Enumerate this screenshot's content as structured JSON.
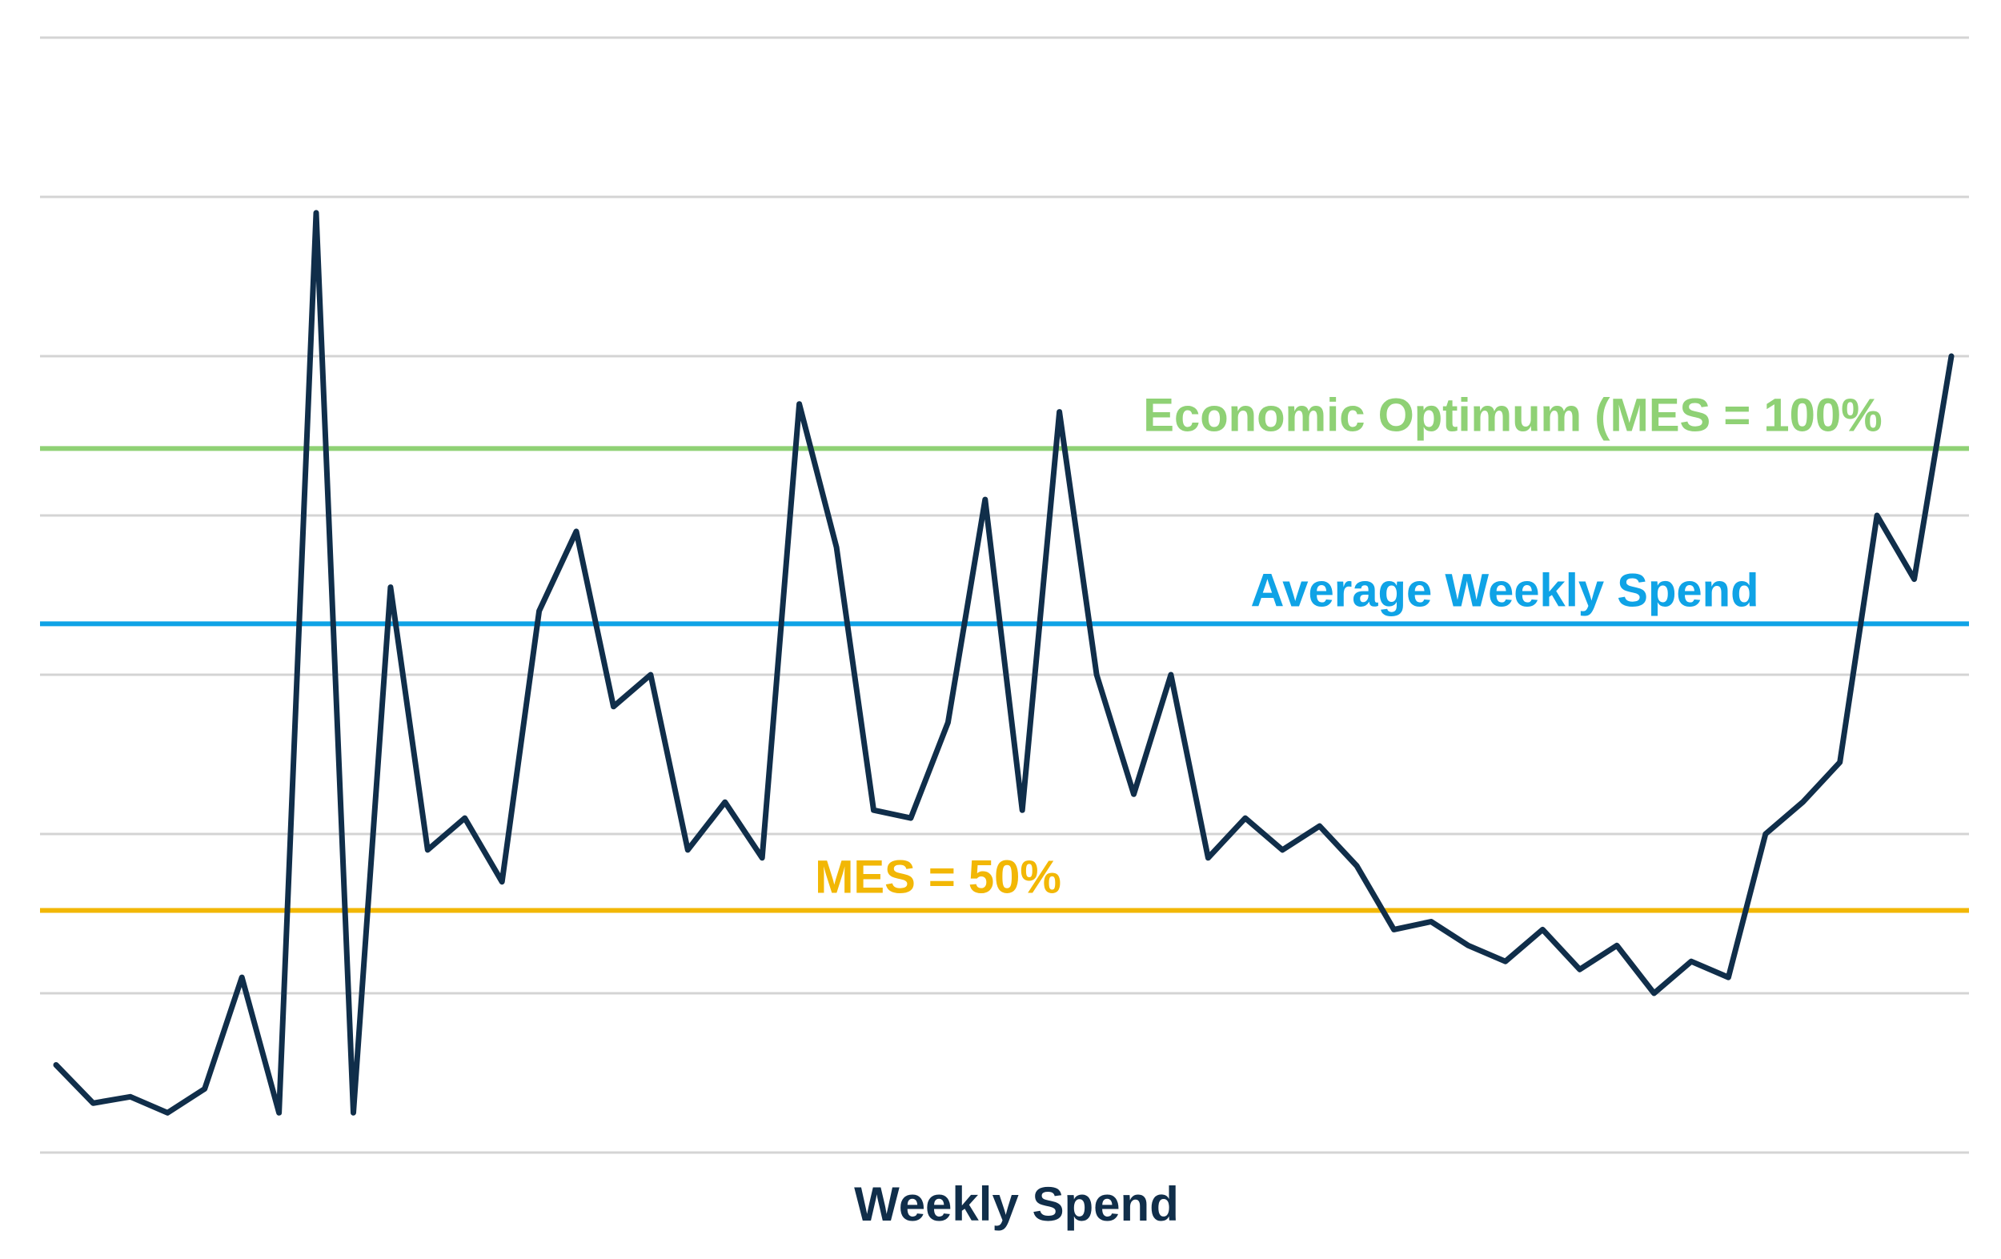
{
  "chart_data": {
    "type": "line",
    "title": "",
    "xlabel": "Weekly Spend",
    "ylabel": "",
    "ylim": [
      0,
      7
    ],
    "grid": true,
    "legend": "none",
    "colors": {
      "series": "#102e4a",
      "grid": "#d4d4d4",
      "economic_optimum": "#8fd175",
      "average": "#0fa3e6",
      "mes50": "#f2b705"
    },
    "series": [
      {
        "values": [
          0.55,
          0.31,
          0.35,
          0.25,
          0.4,
          1.1,
          0.25,
          5.9,
          0.25,
          3.55,
          1.9,
          2.1,
          1.7,
          3.4,
          3.9,
          2.8,
          3.0,
          1.9,
          2.2,
          1.85,
          4.7,
          3.8,
          2.15,
          2.1,
          2.7,
          4.1,
          2.15,
          4.65,
          3.0,
          2.25,
          3.0,
          1.85,
          2.1,
          1.9,
          2.05,
          1.8,
          1.4,
          1.45,
          1.3,
          1.2,
          1.4,
          1.15,
          1.3,
          1.0,
          1.2,
          1.1,
          2.0,
          2.2,
          2.45,
          4.0,
          3.6,
          5.0
        ]
      }
    ],
    "reference_lines": [
      {
        "label": "Economic Optimum (MES = 100%",
        "value": 4.42,
        "color": "#8fd175"
      },
      {
        "label": "Average Weekly Spend",
        "value": 3.32,
        "color": "#0fa3e6"
      },
      {
        "label": "MES = 50%",
        "value": 1.52,
        "color": "#f2b705"
      }
    ]
  }
}
